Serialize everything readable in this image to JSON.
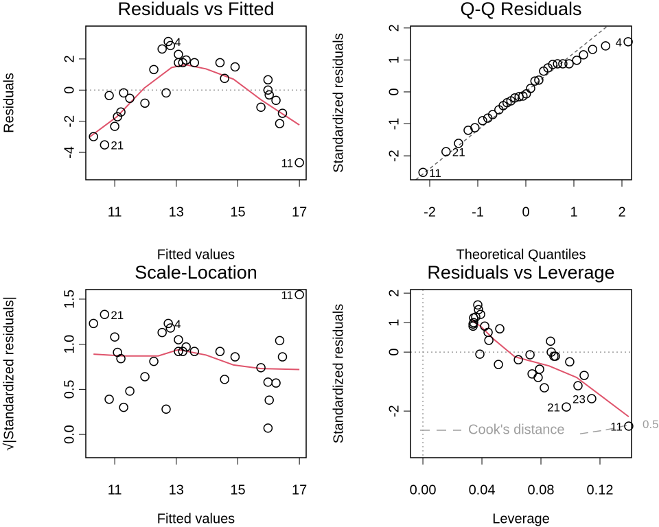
{
  "chart_data": [
    {
      "type": "scatter",
      "title": "Residuals vs Fitted",
      "xlabel": "Fitted values",
      "ylabel": "Residuals",
      "xlim": [
        10.06,
        17.22
      ],
      "ylim": [
        -5.76,
        4.11
      ],
      "xticks": [
        11,
        13,
        15,
        17
      ],
      "yticks": [
        -4,
        -2,
        0,
        2
      ],
      "x": [
        10.31,
        10.67,
        10.82,
        11.0,
        11.09,
        11.2,
        11.29,
        11.49,
        11.98,
        12.27,
        12.54,
        12.67,
        12.74,
        12.81,
        13.07,
        13.07,
        13.21,
        13.32,
        13.59,
        14.42,
        14.57,
        14.91,
        15.75,
        15.98,
        15.98,
        16.02,
        16.24,
        16.36,
        16.45,
        17.0
      ],
      "values": [
        -2.99,
        -3.52,
        -0.35,
        -2.33,
        -1.71,
        -1.41,
        -0.18,
        -0.53,
        -0.84,
        1.32,
        2.64,
        -0.18,
        3.12,
        2.86,
        2.29,
        1.76,
        1.76,
        1.93,
        1.76,
        1.76,
        0.75,
        1.49,
        -1.1,
        0.66,
        0.0,
        -0.31,
        -0.66,
        -2.15,
        -1.49,
        -4.66
      ],
      "point_labels": [
        {
          "label": "4",
          "index": 12
        },
        {
          "label": "21",
          "index": 1
        },
        {
          "label": "11",
          "index": 29
        }
      ],
      "smooth": {
        "color": "#DF536B",
        "x": [
          10.17,
          11.07,
          11.96,
          12.85,
          13.3,
          13.97,
          14.86,
          15.75,
          17.0
        ],
        "values": [
          -3.03,
          -1.71,
          0.13,
          1.45,
          1.63,
          1.36,
          0.7,
          -0.62,
          -2.24
        ]
      },
      "hlines": [
        0
      ]
    },
    {
      "type": "qq",
      "title": "Q-Q Residuals",
      "xlabel": "Theoretical Quantiles",
      "ylabel": "Standardized residuals",
      "xlim": [
        -2.4,
        2.2
      ],
      "ylim": [
        -2.75,
        2.06
      ],
      "xticks": [
        -2,
        -1,
        0,
        1,
        2
      ],
      "yticks": [
        -2,
        -1,
        0,
        1,
        2
      ],
      "x": [
        -2.14,
        -1.66,
        -1.4,
        -1.2,
        -1.06,
        -0.9,
        -0.79,
        -0.69,
        -0.56,
        -0.47,
        -0.39,
        -0.31,
        -0.23,
        -0.14,
        -0.06,
        0.01,
        0.1,
        0.19,
        0.27,
        0.37,
        0.46,
        0.56,
        0.66,
        0.77,
        0.9,
        1.06,
        1.2,
        1.39,
        1.66,
        2.13
      ],
      "values": [
        -2.52,
        -1.87,
        -1.61,
        -1.2,
        -1.12,
        -0.9,
        -0.82,
        -0.71,
        -0.56,
        -0.43,
        -0.34,
        -0.28,
        -0.19,
        -0.15,
        -0.13,
        -0.06,
        0.11,
        0.34,
        0.37,
        0.65,
        0.75,
        0.86,
        0.88,
        0.88,
        0.88,
        0.99,
        1.16,
        1.33,
        1.44,
        1.57
      ],
      "point_labels": [
        {
          "label": "4",
          "index": 29
        },
        {
          "label": "21",
          "index": 1
        },
        {
          "label": "11",
          "index": 0
        }
      ],
      "ref_line": {
        "x": [
          -2.29,
          1.7
        ],
        "values": [
          -2.75,
          2.06
        ]
      }
    },
    {
      "type": "scatter",
      "title": "Scale-Location",
      "xlabel": "Fitted values",
      "ylabel": "√|Standardized residuals|",
      "xlim": [
        10.06,
        17.22
      ],
      "ylim": [
        -0.258,
        1.606
      ],
      "xticks": [
        11,
        13,
        15,
        17
      ],
      "yticks": [
        {
          "value": 0,
          "label": "0.0"
        },
        {
          "value": 0.5,
          "label": "0.5"
        },
        {
          "value": 1,
          "label": "1.0"
        },
        {
          "value": 1.5,
          "label": "1.5"
        }
      ],
      "x": [
        10.31,
        10.67,
        10.82,
        11.0,
        11.09,
        11.2,
        11.29,
        11.49,
        11.98,
        12.27,
        12.54,
        12.67,
        12.74,
        12.81,
        13.07,
        13.07,
        13.21,
        13.32,
        13.59,
        14.42,
        14.57,
        14.91,
        15.75,
        15.98,
        15.98,
        16.02,
        16.24,
        16.36,
        16.45,
        17.0
      ],
      "values": [
        1.23,
        1.33,
        0.39,
        1.08,
        0.91,
        0.84,
        0.3,
        0.48,
        0.64,
        0.81,
        1.13,
        0.28,
        1.23,
        1.18,
        1.05,
        0.92,
        0.92,
        0.97,
        0.92,
        0.92,
        0.61,
        0.86,
        0.74,
        0.58,
        0.07,
        0.38,
        0.57,
        1.04,
        0.86,
        1.55
      ],
      "point_labels": [
        {
          "label": "21",
          "index": 1
        },
        {
          "label": "4",
          "index": 12
        },
        {
          "label": "11",
          "index": 29
        }
      ],
      "smooth": {
        "color": "#DF536B",
        "x": [
          10.31,
          11.29,
          12.41,
          13.07,
          13.97,
          14.86,
          15.75,
          17.0
        ],
        "values": [
          0.89,
          0.87,
          0.87,
          0.94,
          0.88,
          0.77,
          0.73,
          0.72
        ]
      }
    },
    {
      "type": "scatter",
      "title": "Residuals vs Leverage",
      "xlabel": "Leverage",
      "ylabel": "Standardized residuals",
      "xlim": [
        -0.0084,
        0.1414
      ],
      "ylim": [
        -3.58,
        2.12
      ],
      "xticks": [
        {
          "value": 0,
          "label": "0.00"
        },
        {
          "value": 0.04,
          "label": "0.04"
        },
        {
          "value": 0.08,
          "label": "0.08"
        },
        {
          "value": 0.12,
          "label": "0.12"
        }
      ],
      "yticks": [
        -2,
        0,
        1,
        2
      ],
      "x": [
        0.034,
        0.034,
        0.0344,
        0.0344,
        0.0358,
        0.0372,
        0.0377,
        0.0386,
        0.0391,
        0.0419,
        0.0442,
        0.0447,
        0.0512,
        0.0521,
        0.0647,
        0.0726,
        0.074,
        0.0781,
        0.0791,
        0.0823,
        0.0865,
        0.087,
        0.0888,
        0.0898,
        0.0972,
        0.0995,
        0.1051,
        0.1093,
        0.1144,
        0.1395
      ],
      "values": [
        0.88,
        0.95,
        1.0,
        1.16,
        1.19,
        1.6,
        1.44,
        -0.07,
        1.28,
        0.88,
        0.67,
        0.4,
        -0.42,
        0.79,
        -0.26,
        -0.09,
        -0.74,
        -0.86,
        -0.58,
        -1.21,
        0.37,
        0.0,
        -0.14,
        -0.14,
        -1.86,
        -0.33,
        -1.14,
        -0.79,
        -1.58,
        -2.51
      ],
      "point_labels": [
        {
          "label": "21",
          "index": 24
        },
        {
          "label": "23",
          "index": 28
        },
        {
          "label": "11",
          "index": 29
        }
      ],
      "smooth": {
        "color": "#DF536B",
        "x": [
          0.0335,
          0.039,
          0.0484,
          0.0623,
          0.0856,
          0.1042,
          0.1228,
          0.1395
        ],
        "values": [
          1.05,
          0.88,
          0.42,
          -0.16,
          -0.47,
          -0.86,
          -1.56,
          -2.19
        ]
      },
      "hlines": [
        0
      ],
      "vlines": [
        0
      ],
      "cook": {
        "name": "Cook's distance",
        "level": 0.5,
        "x": [
          0.1065,
          0.1228,
          0.1395
        ],
        "values": [
          -2.77,
          -2.65,
          -2.47
        ]
      }
    }
  ]
}
